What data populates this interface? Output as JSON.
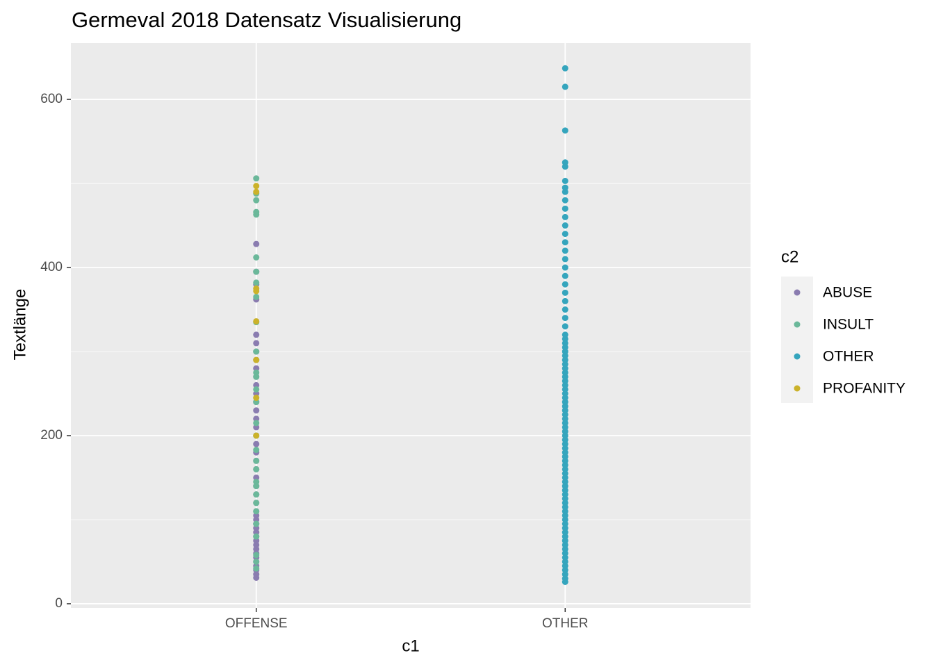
{
  "chart_data": {
    "type": "scatter",
    "title": "Germeval 2018 Datensatz Visualisierung",
    "x_label": "c1",
    "y_label": "Textlänge",
    "legend_title": "c2",
    "legend_position": "right",
    "categories": [
      "OFFENSE",
      "OTHER"
    ],
    "ylim": [
      -5,
      667
    ],
    "yticks": [
      0,
      200,
      400,
      600
    ],
    "yminor": [
      100,
      300,
      500
    ],
    "grid": true,
    "series": [
      {
        "name": "ABUSE",
        "color": "#8a7cb0",
        "x": [
          "OFFENSE",
          "OFFENSE",
          "OFFENSE",
          "OFFENSE",
          "OFFENSE",
          "OFFENSE",
          "OFFENSE",
          "OFFENSE",
          "OFFENSE",
          "OFFENSE",
          "OFFENSE",
          "OFFENSE",
          "OFFENSE",
          "OFFENSE",
          "OFFENSE",
          "OFFENSE",
          "OFFENSE",
          "OFFENSE",
          "OFFENSE",
          "OFFENSE",
          "OFFENSE",
          "OFFENSE",
          "OFFENSE",
          "OFFENSE",
          "OFFENSE",
          "OFFENSE",
          "OFFENSE",
          "OFFENSE",
          "OFFENSE",
          "OFFENSE",
          "OFFENSE",
          "OFFENSE",
          "OFFENSE",
          "OFFENSE",
          "OFFENSE",
          "OFFENSE",
          "OFFENSE",
          "OFFENSE",
          "OFFENSE",
          "OFFENSE",
          "OFFENSE",
          "OFFENSE"
        ],
        "values": [
          31,
          35,
          40,
          45,
          50,
          55,
          60,
          65,
          70,
          75,
          80,
          85,
          90,
          95,
          100,
          105,
          110,
          120,
          130,
          140,
          150,
          160,
          170,
          180,
          190,
          200,
          210,
          220,
          230,
          240,
          250,
          260,
          270,
          280,
          290,
          300,
          310,
          320,
          362,
          380,
          395,
          428
        ]
      },
      {
        "name": "INSULT",
        "color": "#6bb89a",
        "x": [
          "OFFENSE",
          "OFFENSE",
          "OFFENSE",
          "OFFENSE",
          "OFFENSE",
          "OFFENSE",
          "OFFENSE",
          "OFFENSE",
          "OFFENSE",
          "OFFENSE",
          "OFFENSE",
          "OFFENSE",
          "OFFENSE",
          "OFFENSE",
          "OFFENSE",
          "OFFENSE",
          "OFFENSE",
          "OFFENSE",
          "OFFENSE",
          "OFFENSE",
          "OFFENSE",
          "OFFENSE",
          "OFFENSE",
          "OFFENSE",
          "OFFENSE",
          "OFFENSE",
          "OFFENSE",
          "OFFENSE",
          "OFFENSE",
          "OFFENSE"
        ],
        "values": [
          42,
          50,
          58,
          80,
          95,
          110,
          120,
          130,
          140,
          145,
          160,
          170,
          183,
          200,
          215,
          240,
          255,
          270,
          275,
          300,
          335,
          365,
          382,
          395,
          412,
          463,
          466,
          480,
          488,
          506
        ]
      },
      {
        "name": "OTHER",
        "color": "#35a5bd",
        "x": [
          "OTHER",
          "OTHER",
          "OTHER",
          "OTHER",
          "OTHER",
          "OTHER",
          "OTHER",
          "OTHER",
          "OTHER",
          "OTHER",
          "OTHER",
          "OTHER",
          "OTHER",
          "OTHER",
          "OTHER",
          "OTHER",
          "OTHER",
          "OTHER",
          "OTHER",
          "OTHER",
          "OTHER",
          "OTHER",
          "OTHER",
          "OTHER",
          "OTHER",
          "OTHER",
          "OTHER",
          "OTHER",
          "OTHER",
          "OTHER",
          "OTHER",
          "OTHER",
          "OTHER",
          "OTHER",
          "OTHER",
          "OTHER",
          "OTHER",
          "OTHER",
          "OTHER",
          "OTHER",
          "OTHER",
          "OTHER",
          "OTHER",
          "OTHER",
          "OTHER",
          "OTHER",
          "OTHER",
          "OTHER",
          "OTHER",
          "OTHER",
          "OTHER",
          "OTHER",
          "OTHER",
          "OTHER",
          "OTHER",
          "OTHER",
          "OTHER",
          "OTHER",
          "OTHER",
          "OTHER",
          "OTHER",
          "OTHER",
          "OTHER",
          "OTHER",
          "OTHER",
          "OTHER",
          "OTHER",
          "OTHER",
          "OTHER",
          "OTHER",
          "OTHER",
          "OTHER",
          "OTHER",
          "OTHER",
          "OTHER",
          "OTHER",
          "OTHER",
          "OTHER",
          "OTHER",
          "OTHER",
          "OTHER",
          "OTHER",
          "OTHER",
          "OTHER"
        ],
        "values": [
          26,
          30,
          35,
          40,
          45,
          50,
          55,
          60,
          65,
          70,
          75,
          80,
          85,
          90,
          95,
          100,
          105,
          110,
          115,
          120,
          125,
          130,
          135,
          140,
          145,
          150,
          155,
          160,
          165,
          170,
          175,
          180,
          185,
          190,
          195,
          200,
          205,
          210,
          215,
          220,
          225,
          230,
          235,
          240,
          245,
          250,
          255,
          260,
          265,
          270,
          275,
          280,
          285,
          290,
          295,
          300,
          305,
          310,
          315,
          320,
          330,
          340,
          350,
          360,
          370,
          380,
          390,
          400,
          410,
          420,
          430,
          440,
          450,
          460,
          470,
          480,
          490,
          495,
          503,
          520,
          525,
          563,
          615,
          637
        ]
      },
      {
        "name": "PROFANITY",
        "color": "#cbb22a",
        "x": [
          "OFFENSE",
          "OFFENSE",
          "OFFENSE",
          "OFFENSE",
          "OFFENSE",
          "OFFENSE",
          "OFFENSE",
          "OFFENSE"
        ],
        "values": [
          200,
          245,
          290,
          336,
          372,
          375,
          490,
          497
        ]
      }
    ]
  }
}
